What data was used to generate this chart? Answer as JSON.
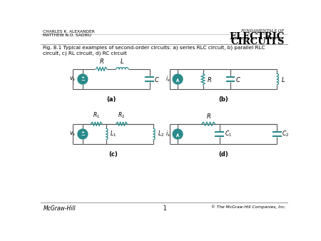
{
  "bg_color": "#ffffff",
  "title_left1": "CHARLES K. ALEXANDER",
  "title_left2": "MATTHEW N.O. SADIKU",
  "title_right_small": "FUNDAMENTALS OF",
  "title_right_big1": "ELECTRIC",
  "title_right_big2": "CIRCUITS",
  "fig_caption": "Fig. 8.1 Typical examples of second-order circuits: a) series RLC circuit, b) parallel RLC\ncircuit, c) RL circuit, d) RC circuit",
  "label_a": "(a)",
  "label_b": "(b)",
  "label_c": "(c)",
  "label_d": "(d)",
  "footer_left": "McGraw-Hill",
  "footer_center": "1",
  "footer_right": "© The McGraw-Hill Companies, Inc.",
  "teal": "#2a8a8a",
  "wire_color": "#555555",
  "header_line_color": "#999999",
  "footer_line_color": "#999999"
}
